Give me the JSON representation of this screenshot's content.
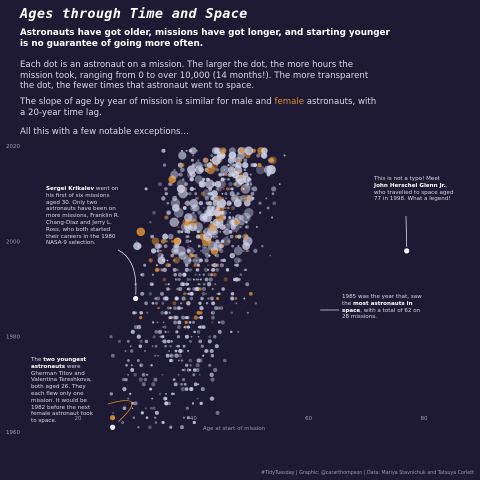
{
  "title": "Ages through Time and Space",
  "subtitle": "Astronauts have got older, missions have got longer, and starting younger is no guarantee of going more often.",
  "para1": "Each dot is an astronaut on a mission. The larger the dot, the more hours the mission took, ranging from 0 to over 10,000 (14 months!). The more transparent the dot, the fewer times that astronaut went to space.",
  "para2_a": "The slope of age by year of mission is similar for male and ",
  "para2_b": "female",
  "para2_c": " astronauts, with a 20-year time lag.",
  "para3": "All this with a few notable exceptions...",
  "ann_krikalev": {
    "name": "Sergei Krikalev",
    "text": " went on his first of six missions aged 30. Only two astronauts have been on more missions, Franklin R. Chang-Diaz and Jerry L. Ross, who both started their careers in the 1980 NASA-9 selection."
  },
  "ann_glenn": {
    "pre": "This is not a typo! Meet ",
    "name": "John Herschel Glenn Jr.",
    "post": ", who travelled to space aged 77 in 1998. What a legend!"
  },
  "ann_1985": {
    "pre": "1985 was the year that, saw the ",
    "bold": "most astronauts in space",
    "post": ", with a total of 62 on 28 missions."
  },
  "ann_youngest": {
    "pre": "The ",
    "bold": "two youngest astronauts",
    "post": " were Gherman Titov and Valentina Tereshkova, both aged 26. They each flew only one mission. It would be 1982 before the next female astronaut took to space."
  },
  "caption": "#TidyTuesday | Graphic: @cararthompson | Data: Mariya Stavnichuk and Tatsuya Corlett",
  "colors": {
    "background": "#1e1a33",
    "male": "#d0d4ea",
    "female": "#d98e2f",
    "text": "#d8d6e6"
  },
  "chart_data": {
    "type": "scatter",
    "xlabel": "Age at start of mission",
    "ylabel": "",
    "xlim": [
      20,
      80
    ],
    "ylim": [
      1960,
      2020
    ],
    "x_ticks": [
      20,
      40,
      60,
      80
    ],
    "y_ticks": [
      1960,
      1980,
      2000,
      2020
    ],
    "y_reversed": true,
    "grid": false,
    "size_encodes": "mission hours (0 to over 10,000)",
    "opacity_encodes": "number of missions of the astronaut",
    "series": [
      {
        "name": "male",
        "color": "#d0d4ea"
      },
      {
        "name": "female",
        "color": "#d98e2f"
      }
    ],
    "highlighted_points": [
      {
        "label": "Sergei Krikalev",
        "x": 30,
        "y": 1988
      },
      {
        "label": "John Herschel Glenn Jr.",
        "x": 77,
        "y": 1998
      },
      {
        "label": "Gherman Titov",
        "x": 26,
        "y": 1961
      },
      {
        "label": "Valentina Tereshkova",
        "x": 26,
        "y": 1963
      }
    ],
    "annotated_year": {
      "year": 1985,
      "astronauts_in_space": 62,
      "missions": 28
    }
  }
}
